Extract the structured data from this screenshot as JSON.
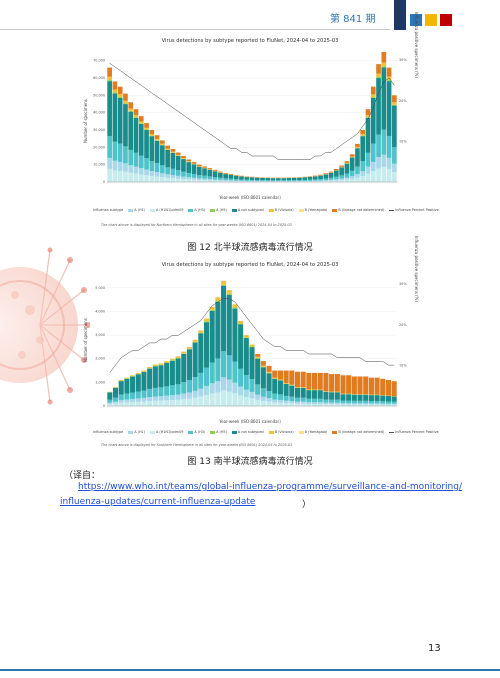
{
  "header": {
    "issue": "第 841 期"
  },
  "figure1": {
    "title": "Virus detections by subtype reported to FluNet, 2024-04 to 2025-03",
    "ylabel": "Number of specimens",
    "y2label": "Influenza positive specimens (%)",
    "xlabel": "Year-week (ISO 8601 calendar)",
    "note": "The chart above is displayed for Northern Hemisphere in all sites for year-weeks (ISO 8601) 2024-04 to 2025-03",
    "caption": "图 12    北半球流感病毒流行情况"
  },
  "figure2": {
    "title": "Virus detections by subtype reported to FluNet, 2024-04 to 2025-03",
    "ylabel": "Number of specimens",
    "y2label": "Influenza positive specimens (%)",
    "xlabel": "Year-week (ISO 8601 calendar)",
    "note": "The chart above is displayed for Southern Hemisphere in all sites for year-weeks (ISO 8601) 2024-04 to 2025-03",
    "caption": "图 13    南半球流感病毒流行情况"
  },
  "legend": {
    "title": "Influenza subtype",
    "items": [
      {
        "label": "A (H1)",
        "color": "#a8d8ea"
      },
      {
        "label": "A (H1N1)pdm09",
        "color": "#c7ecee"
      },
      {
        "label": "A (H3)",
        "color": "#4fc3c9"
      },
      {
        "label": "A (H5)",
        "color": "#8fd14f"
      },
      {
        "label": "A not subtyped",
        "color": "#1a8c8c"
      },
      {
        "label": "B (Victoria)",
        "color": "#f0c040"
      },
      {
        "label": "B (Yamagata)",
        "color": "#f7e08a"
      },
      {
        "label": "B (lineage not determined)",
        "color": "#e07b20"
      },
      {
        "label": "Influenza Percent Positive",
        "color": "#555555"
      }
    ]
  },
  "chart_data": [
    {
      "type": "bar",
      "title": "Virus detections by subtype reported to FluNet, 2024-04 to 2025-03",
      "ylabel": "Number of specimens",
      "xlabel": "Year-week (ISO 8601 calendar)",
      "ylim": [
        0,
        75000
      ],
      "yticks": [
        "0",
        "10,000",
        "20,000",
        "30,000",
        "40,000",
        "50,000",
        "60,000",
        "70,000"
      ],
      "y2ticks": [
        "10%",
        "20%",
        "30%"
      ],
      "totals": [
        66000,
        58000,
        55000,
        51000,
        46000,
        42000,
        38000,
        34000,
        30000,
        27000,
        24000,
        21000,
        19000,
        17000,
        15000,
        13000,
        11500,
        10000,
        9000,
        8000,
        7000,
        6000,
        5200,
        4600,
        4000,
        3600,
        3200,
        3000,
        2800,
        2700,
        2600,
        2500,
        2500,
        2500,
        2600,
        2700,
        2800,
        3000,
        3300,
        3700,
        4200,
        5000,
        6000,
        7500,
        9500,
        12000,
        16000,
        22000,
        30000,
        42000,
        55000,
        68000,
        75000,
        66000,
        50000
      ],
      "orange_share": 0.08,
      "percent_positive": [
        32,
        31,
        30,
        29,
        28,
        27,
        26,
        25,
        24,
        23,
        22,
        21,
        20,
        19,
        18,
        17,
        16,
        15,
        14,
        13,
        12,
        11,
        10,
        9,
        9,
        8,
        8,
        7,
        7,
        7,
        7,
        7,
        6,
        6,
        6,
        6,
        6,
        6,
        6,
        7,
        7,
        8,
        8,
        9,
        10,
        11,
        12,
        13,
        15,
        17,
        20,
        24,
        27,
        28,
        26
      ]
    },
    {
      "type": "bar",
      "title": "Virus detections by subtype reported to FluNet, 2024-04 to 2025-03",
      "ylabel": "Number of specimens",
      "xlabel": "Year-week (ISO 8601 calendar)",
      "ylim": [
        0,
        5500
      ],
      "yticks": [
        "0",
        "1,000",
        "2,000",
        "3,000",
        "4,000",
        "5,000"
      ],
      "y2ticks": [
        "10%",
        "20%",
        "30%"
      ],
      "totals": [
        600,
        800,
        1100,
        1200,
        1300,
        1400,
        1500,
        1650,
        1750,
        1800,
        1900,
        2000,
        2100,
        2300,
        2500,
        2800,
        3200,
        3700,
        4200,
        4600,
        5300,
        4900,
        4300,
        3600,
        3000,
        2600,
        2200,
        1900,
        1700,
        1500,
        1500,
        1500,
        1500,
        1450,
        1450,
        1400,
        1400,
        1400,
        1400,
        1350,
        1350,
        1300,
        1300,
        1250,
        1250,
        1250,
        1200,
        1200,
        1150,
        1100,
        1050
      ],
      "orange_share": [
        0,
        0,
        0,
        0,
        0,
        0,
        0,
        0,
        0,
        0,
        0,
        0,
        0,
        0,
        0,
        0,
        0,
        0,
        0,
        0,
        0,
        0,
        0,
        0,
        0,
        0,
        0.05,
        0.1,
        0.15,
        0.2,
        0.25,
        0.35,
        0.4,
        0.45,
        0.45,
        0.5,
        0.5,
        0.5,
        0.55,
        0.55,
        0.55,
        0.6,
        0.6,
        0.6,
        0.6,
        0.6,
        0.6,
        0.6,
        0.6,
        0.6,
        0.6
      ],
      "percent_positive": [
        9,
        11,
        13,
        14,
        15,
        15,
        16,
        17,
        17,
        18,
        18,
        19,
        19,
        20,
        21,
        22,
        23,
        25,
        27,
        28,
        29,
        29,
        28,
        26,
        24,
        22,
        20,
        18,
        17,
        16,
        16,
        15,
        15,
        15,
        15,
        14,
        14,
        14,
        14,
        14,
        13,
        13,
        13,
        13,
        13,
        12,
        12,
        12,
        12,
        11,
        11
      ]
    }
  ],
  "source": {
    "label": "（译自：",
    "url_line1": "https://www.who.int/teams/global-influenza-programme/surveillance-and-monitoring/",
    "url_line2": "influenza-updates/current-influenza-update",
    "close": "）"
  },
  "page_number": "13"
}
